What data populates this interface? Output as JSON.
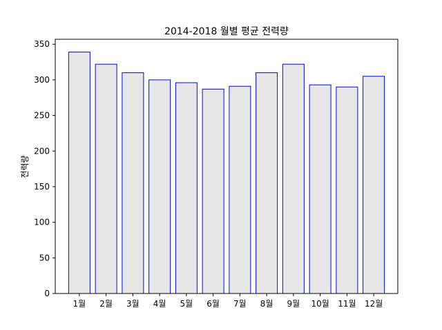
{
  "chart_data": {
    "type": "bar",
    "title": "2014-2018 월별 평균 전력량",
    "xlabel": "",
    "ylabel": "전력량",
    "categories": [
      "1월",
      "2월",
      "3월",
      "4월",
      "5월",
      "6월",
      "7월",
      "8월",
      "9월",
      "10월",
      "11월",
      "12월"
    ],
    "values": [
      339,
      322,
      310,
      300,
      296,
      287,
      291,
      310,
      322,
      293,
      290,
      305
    ],
    "ylim": [
      0,
      357
    ],
    "yticks": [
      0,
      50,
      100,
      150,
      200,
      250,
      300,
      350
    ],
    "grid": false,
    "colors": {
      "bar_fill": "#e6e6e6",
      "bar_edge": "#0000ff",
      "axis": "#000000"
    }
  }
}
